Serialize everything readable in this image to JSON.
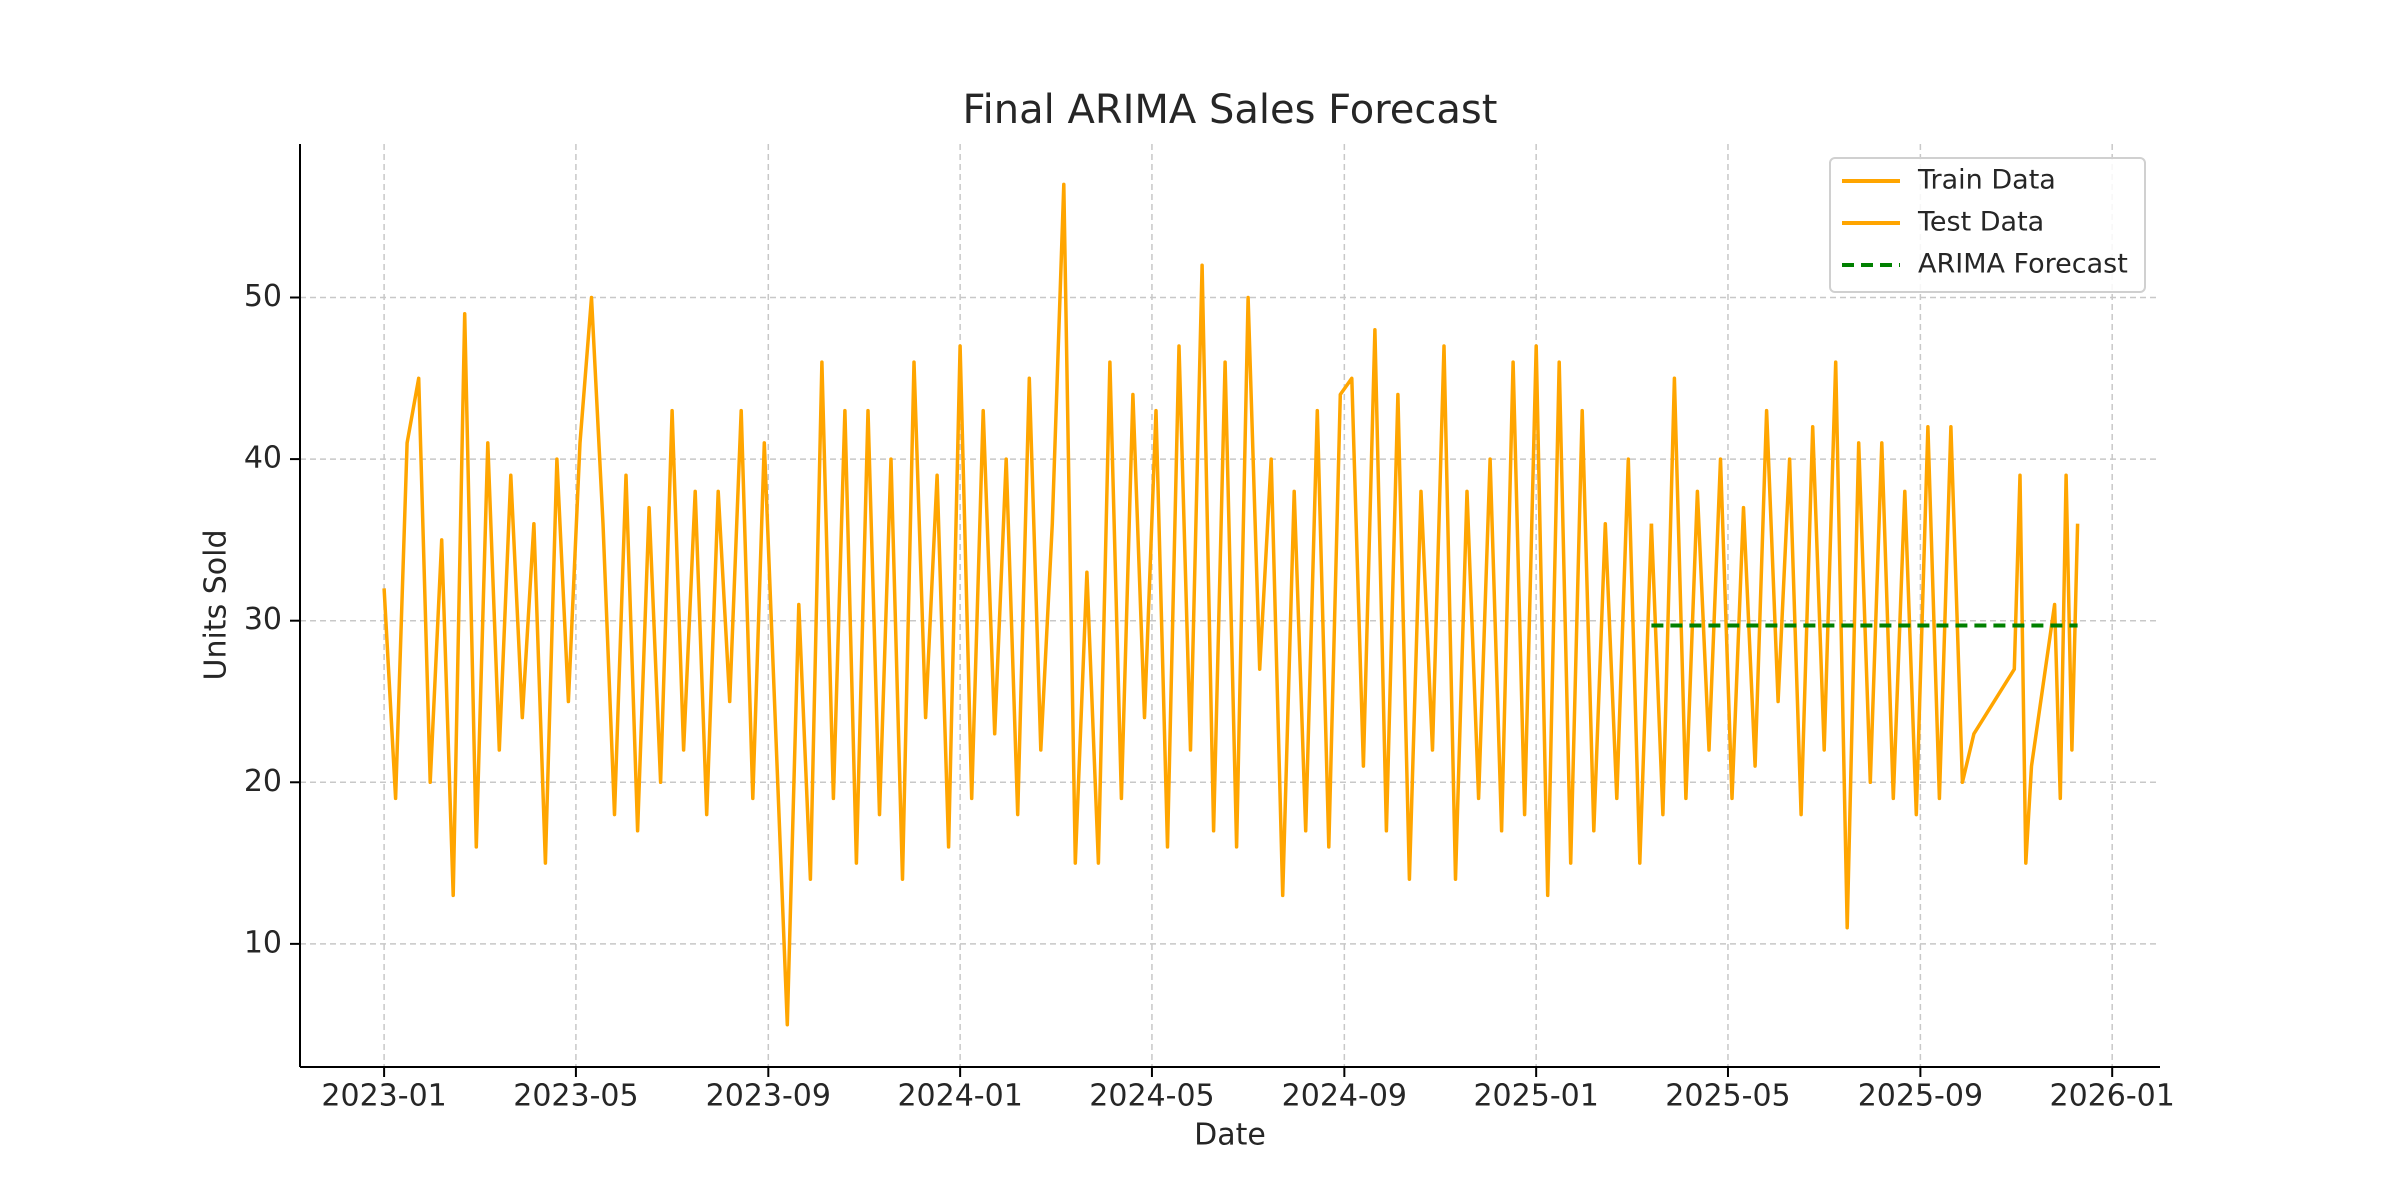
{
  "chart_data": {
    "type": "line",
    "title": "Final ARIMA Sales Forecast",
    "xlabel": "Date",
    "ylabel": "Units Sold",
    "xlim": [
      2022.854,
      2026.083
    ],
    "ylim": [
      2.38,
      59.5
    ],
    "xticks": [
      {
        "value": 2023.0,
        "label": "2023-01"
      },
      {
        "value": 2023.333,
        "label": "2023-05"
      },
      {
        "value": 2023.667,
        "label": "2023-09"
      },
      {
        "value": 2024.0,
        "label": "2024-01"
      },
      {
        "value": 2024.333,
        "label": "2024-05"
      },
      {
        "value": 2024.667,
        "label": "2024-09"
      },
      {
        "value": 2025.0,
        "label": "2025-01"
      },
      {
        "value": 2025.333,
        "label": "2025-05"
      },
      {
        "value": 2025.667,
        "label": "2025-09"
      },
      {
        "value": 2026.0,
        "label": "2026-01"
      }
    ],
    "yticks": [
      10,
      20,
      30,
      40,
      50
    ],
    "grid": true,
    "legend": "upper right",
    "series": [
      {
        "name": "Train Data",
        "color": "#ffa500",
        "linestyle": "solid",
        "x": [
          2023.0,
          2023.02,
          2023.04,
          2023.06,
          2023.08,
          2023.1,
          2023.12,
          2023.14,
          2023.16,
          2023.18,
          2023.2,
          2023.22,
          2023.24,
          2023.26,
          2023.28,
          2023.3,
          2023.32,
          2023.34,
          2023.36,
          2023.38,
          2023.4,
          2023.42,
          2023.44,
          2023.46,
          2023.48,
          2023.5,
          2023.52,
          2023.54,
          2023.56,
          2023.58,
          2023.6,
          2023.62,
          2023.64,
          2023.66,
          2023.68,
          2023.7,
          2023.72,
          2023.74,
          2023.76,
          2023.78,
          2023.8,
          2023.82,
          2023.84,
          2023.86,
          2023.88,
          2023.9,
          2023.92,
          2023.94,
          2023.96,
          2023.98,
          2024.0,
          2024.02,
          2024.04,
          2024.06,
          2024.08,
          2024.1,
          2024.12,
          2024.14,
          2024.16,
          2024.18,
          2024.2,
          2024.22,
          2024.24,
          2024.26,
          2024.28,
          2024.3,
          2024.32,
          2024.34,
          2024.36,
          2024.38,
          2024.4,
          2024.42,
          2024.44,
          2024.46,
          2024.48,
          2024.5,
          2024.52,
          2024.54,
          2024.56,
          2024.58,
          2024.6,
          2024.62,
          2024.64,
          2024.66,
          2024.68,
          2024.7,
          2024.72,
          2024.74,
          2024.76,
          2024.78,
          2024.8,
          2024.82,
          2024.84,
          2024.86,
          2024.88,
          2024.9,
          2024.92,
          2024.94,
          2024.96,
          2024.98,
          2025.0,
          2025.02,
          2025.04,
          2025.06,
          2025.08,
          2025.1,
          2025.12,
          2025.14,
          2025.16,
          2025.18,
          2025.2
        ],
        "values": [
          32,
          19,
          41,
          45,
          20,
          35,
          13,
          49,
          16,
          41,
          22,
          39,
          24,
          36,
          15,
          40,
          25,
          41,
          50,
          36,
          18,
          39,
          17,
          37,
          20,
          43,
          22,
          38,
          18,
          38,
          25,
          43,
          19,
          41,
          23,
          5,
          31,
          14,
          46,
          19,
          43,
          15,
          43,
          18,
          40,
          14,
          46,
          24,
          39,
          16,
          47,
          19,
          43,
          23,
          40,
          18,
          45,
          22,
          36,
          57,
          15,
          33,
          15,
          46,
          19,
          44,
          24,
          43,
          16,
          47,
          22,
          52,
          17,
          46,
          16,
          50,
          27,
          40,
          13,
          38,
          17,
          43,
          16,
          44,
          45,
          21,
          48,
          17,
          44,
          14,
          38,
          22,
          47,
          14,
          38,
          19,
          40,
          17,
          46,
          18,
          47,
          13,
          46,
          15,
          43,
          17,
          36,
          19,
          40,
          15,
          36
        ]
      },
      {
        "name": "Test Data",
        "color": "#ffa500",
        "linestyle": "solid",
        "x": [
          2025.2,
          2025.22,
          2025.24,
          2025.26,
          2025.28,
          2025.3,
          2025.32,
          2025.34,
          2025.36,
          2025.38,
          2025.4,
          2025.42,
          2025.44,
          2025.46,
          2025.48,
          2025.5,
          2025.52,
          2025.54,
          2025.56,
          2025.58,
          2025.6,
          2025.62,
          2025.64,
          2025.66,
          2025.68,
          2025.7,
          2025.72,
          2025.74,
          2025.76,
          2025.83,
          2025.84,
          2025.85,
          2025.86,
          2025.9,
          2025.91,
          2025.92,
          2025.93,
          2025.94
        ],
        "values": [
          36,
          18,
          45,
          19,
          38,
          22,
          40,
          19,
          37,
          21,
          43,
          25,
          40,
          18,
          42,
          22,
          46,
          11,
          41,
          20,
          41,
          19,
          38,
          18,
          42,
          19,
          42,
          20,
          23,
          27,
          39,
          15,
          21,
          31,
          19,
          39,
          22,
          36
        ]
      },
      {
        "name": "ARIMA Forecast",
        "color": "#008000",
        "linestyle": "dashed",
        "x": [
          2025.2,
          2025.94
        ],
        "values": [
          29.7,
          29.7
        ]
      }
    ]
  }
}
